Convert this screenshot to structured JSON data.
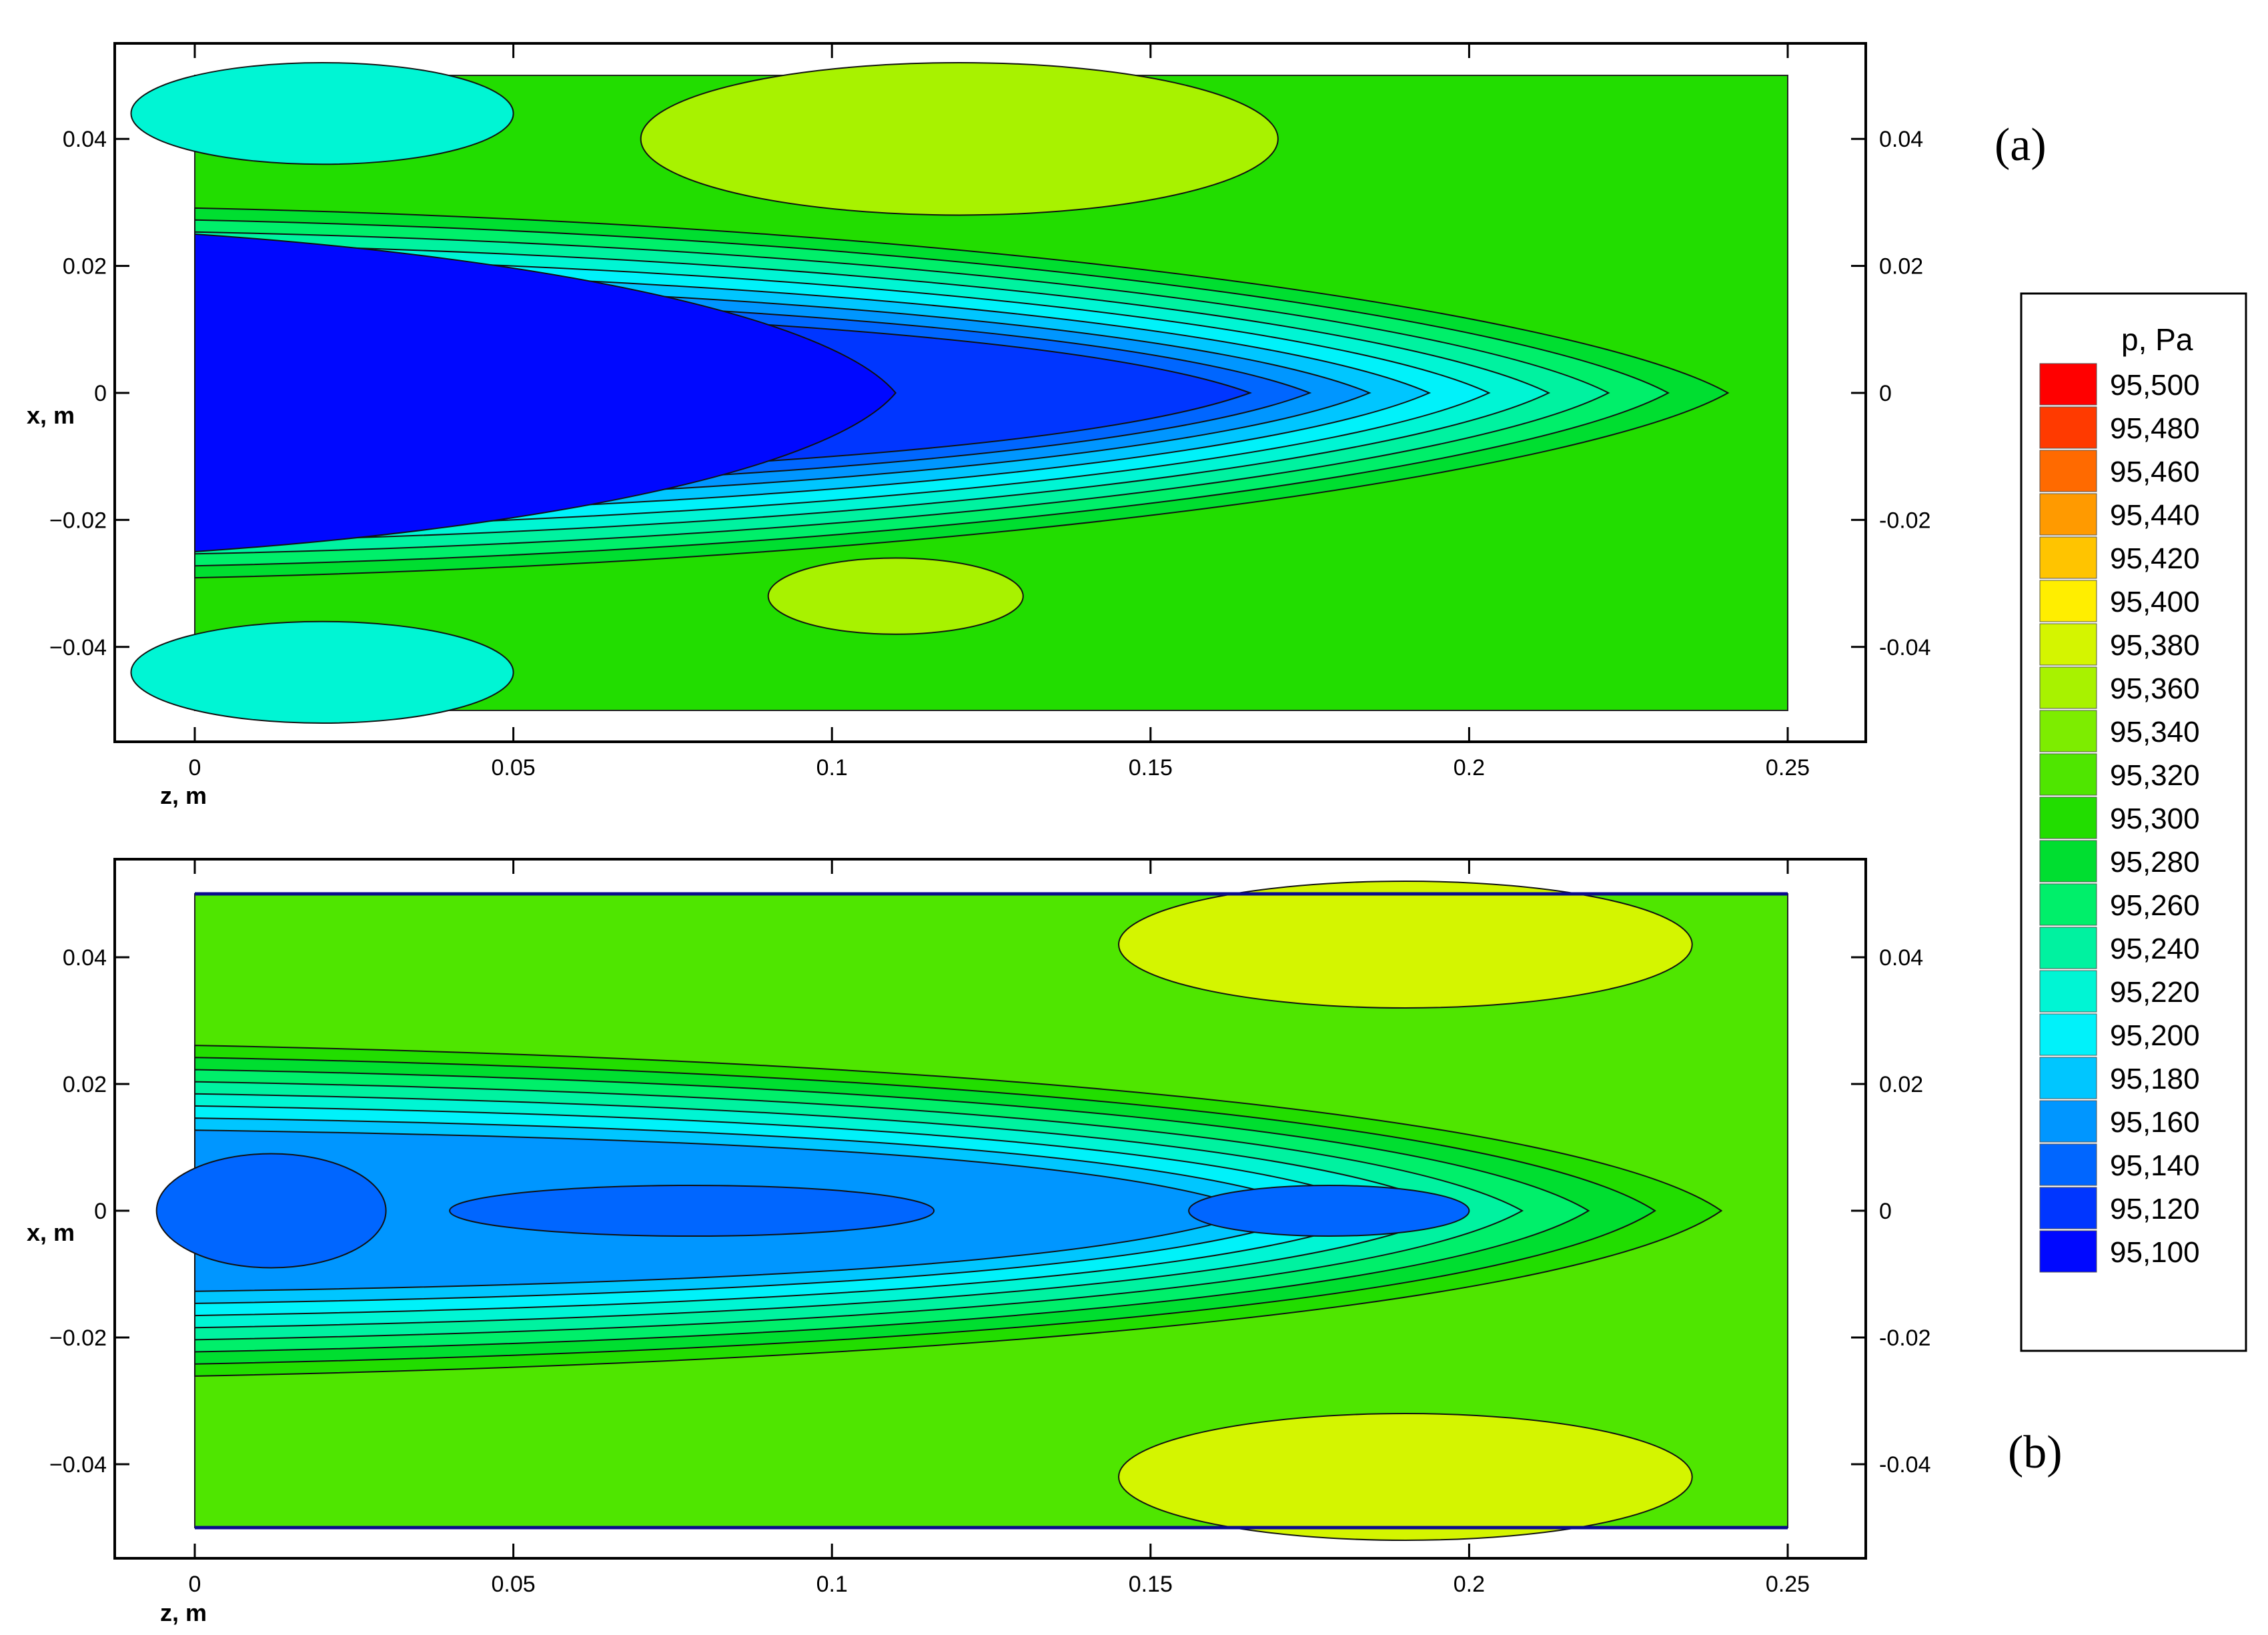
{
  "chart_data": [
    {
      "type": "heatmap",
      "panel_label": "(a)",
      "xlabel": "z, m",
      "ylabel": "x, m",
      "xlim": [
        0,
        0.25
      ],
      "ylim": [
        -0.05,
        0.05
      ],
      "x_ticks": [
        "0",
        "0.05",
        "0.1",
        "0.15",
        "0.2",
        "0.25"
      ],
      "y_ticks": [
        "0.04",
        "0.02",
        "0",
        "-0.02",
        "-0.04"
      ],
      "y_ticks_left": [
        "0.04",
        "0.02",
        "0",
        "−0.02",
        "−0.04"
      ],
      "contours": {
        "base_level": 95300,
        "features": [
          {
            "kind": "jet",
            "z0": 0.0,
            "z1": 0.25,
            "half_width_start": 0.027,
            "half_width_end": 0.005,
            "levels": [
              95280,
              95260,
              95240,
              95220,
              95200,
              95180,
              95160,
              95140,
              95120
            ]
          },
          {
            "kind": "core",
            "z0": 0.0,
            "z1": 0.11,
            "half_width": 0.025,
            "level": 95100
          },
          {
            "kind": "blob",
            "z": 0.12,
            "x": 0.04,
            "rz": 0.05,
            "rx": 0.012,
            "level": 95360
          },
          {
            "kind": "blob",
            "z": 0.11,
            "x": -0.032,
            "rz": 0.02,
            "rx": 0.006,
            "level": 95360
          },
          {
            "kind": "blob",
            "z": 0.02,
            "x": 0.044,
            "rz": 0.03,
            "rx": 0.008,
            "level": 95220
          },
          {
            "kind": "blob",
            "z": 0.02,
            "x": -0.044,
            "rz": 0.03,
            "rx": 0.008,
            "level": 95220
          }
        ]
      }
    },
    {
      "type": "heatmap",
      "panel_label": "(b)",
      "xlabel": "z, m",
      "ylabel": "x, m",
      "xlim": [
        0,
        0.25
      ],
      "ylim": [
        -0.05,
        0.05
      ],
      "x_ticks": [
        "0",
        "0.05",
        "0.1",
        "0.15",
        "0.2",
        "0.25"
      ],
      "y_ticks": [
        "0.04",
        "0.02",
        "0",
        "-0.02",
        "-0.04"
      ],
      "y_ticks_left": [
        "0.04",
        "0.02",
        "0",
        "−0.02",
        "−0.04"
      ],
      "contours": {
        "base_level": 95320,
        "features": [
          {
            "kind": "jet",
            "z0": 0.0,
            "z1": 0.25,
            "half_width_start": 0.024,
            "half_width_end": 0.008,
            "levels": [
              95300,
              95280,
              95260,
              95240,
              95220,
              95200,
              95180,
              95160
            ]
          },
          {
            "kind": "blob",
            "z": 0.008,
            "x": 0.0,
            "rz": 0.012,
            "rx": 0.006,
            "level": 95120
          },
          {
            "kind": "blob",
            "z": 0.012,
            "x": 0.0,
            "rz": 0.018,
            "rx": 0.009,
            "level": 95140
          },
          {
            "kind": "blob",
            "z": 0.078,
            "x": 0.0,
            "rz": 0.038,
            "rx": 0.004,
            "level": 95140
          },
          {
            "kind": "blob",
            "z": 0.178,
            "x": 0.0,
            "rz": 0.022,
            "rx": 0.004,
            "level": 95140
          },
          {
            "kind": "blob",
            "z": 0.19,
            "x": 0.042,
            "rz": 0.045,
            "rx": 0.01,
            "level": 95380
          },
          {
            "kind": "blob",
            "z": 0.19,
            "x": -0.042,
            "rz": 0.045,
            "rx": 0.01,
            "level": 95380
          }
        ]
      }
    }
  ],
  "colorbar": {
    "title": "p, Pa",
    "levels": [
      "95,500",
      "95,480",
      "95,460",
      "95,440",
      "95,420",
      "95,400",
      "95,380",
      "95,360",
      "95,340",
      "95,320",
      "95,300",
      "95,280",
      "95,260",
      "95,240",
      "95,220",
      "95,200",
      "95,180",
      "95,160",
      "95,140",
      "95,120",
      "95,100"
    ],
    "colors": [
      "#ff0000",
      "#ff3a00",
      "#ff6a00",
      "#ff9a00",
      "#ffc400",
      "#ffee00",
      "#d4f500",
      "#a8f200",
      "#7ded00",
      "#4fe600",
      "#22dd00",
      "#00de30",
      "#00ef6a",
      "#00f2a0",
      "#00f5d4",
      "#00f2fa",
      "#00c6ff",
      "#0096ff",
      "#0066ff",
      "#0036ff",
      "#0008ff"
    ]
  }
}
